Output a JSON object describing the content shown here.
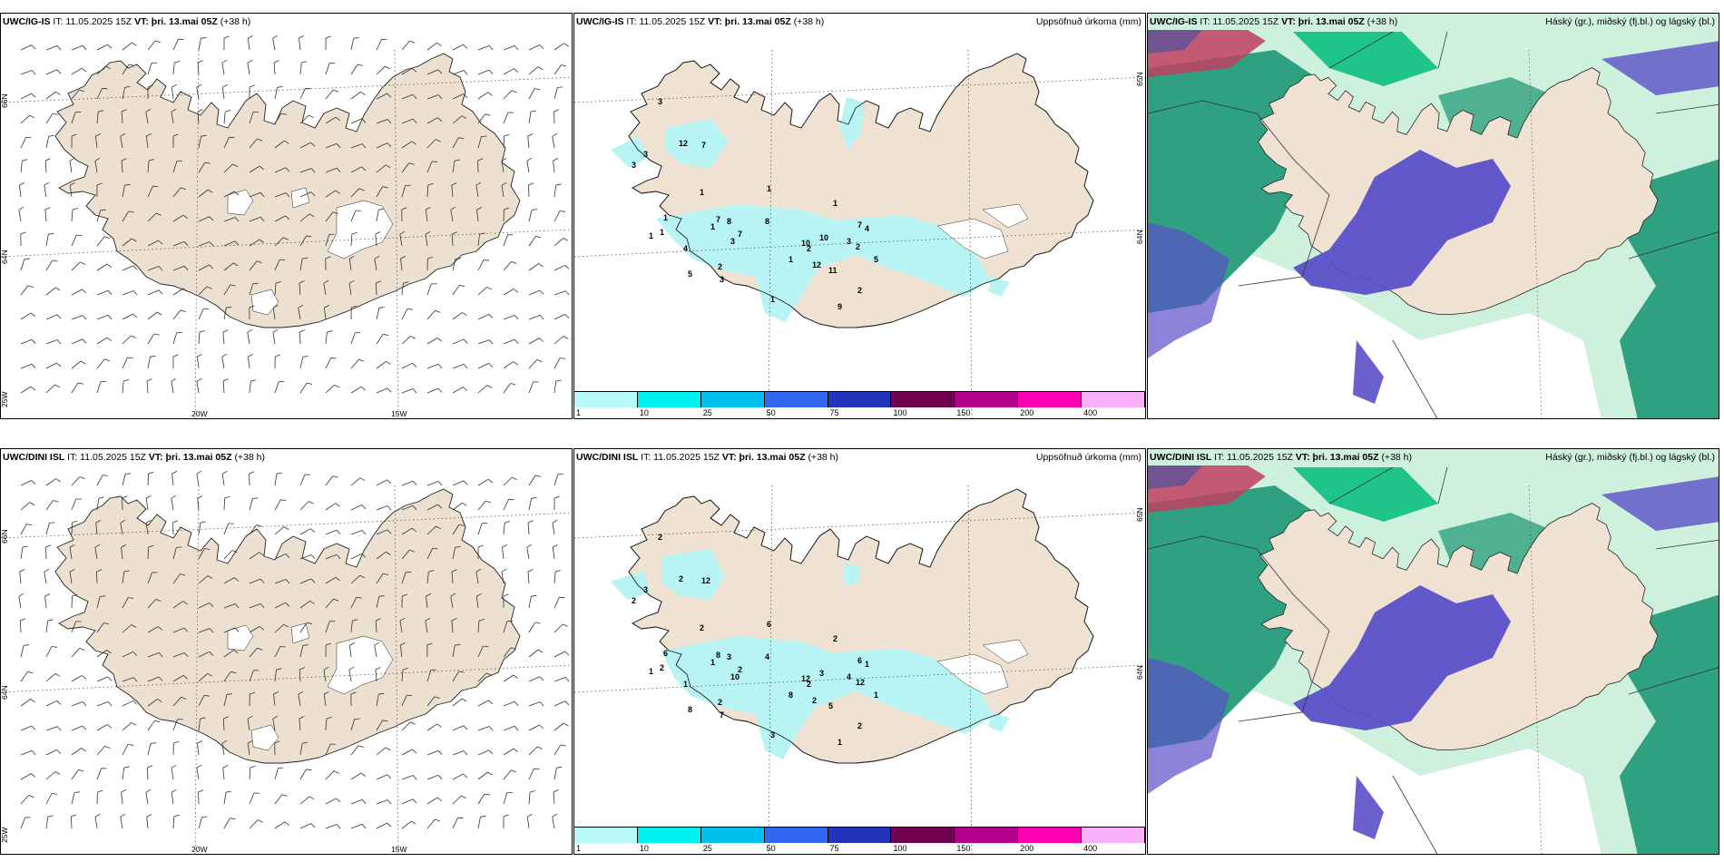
{
  "rows": [
    {
      "model": "UWC/IG-IS",
      "init_label": "IT: 11.05.2025 15Z",
      "valid_label": "VT: þri. 13.mai 05Z",
      "lead": "(+38 h)",
      "lon_labels": [
        "20W",
        "15W"
      ],
      "lat_labels": [
        "66N",
        "64N",
        "25W"
      ],
      "lat_labels_mid": [
        "65N",
        "64N"
      ],
      "precip_numbers": [
        "3",
        "12",
        "7",
        "3",
        "3",
        "1",
        "1",
        "1",
        "4",
        "2",
        "3",
        "5",
        "1",
        "8",
        "7",
        "7",
        "3",
        "1",
        "8",
        "10",
        "10",
        "1",
        "7",
        "2",
        "12",
        "11",
        "3",
        "2",
        "5",
        "4",
        "1",
        "1",
        "9",
        "2",
        "1"
      ]
    },
    {
      "model": "UWC/DINI ISL",
      "init_label": "IT: 11.05.2025 15Z",
      "valid_label": "VT: þri. 13.mai 05Z",
      "lead": "(+38 h)",
      "lon_labels": [
        "20W",
        "15W"
      ],
      "lat_labels": [
        "66N",
        "64N",
        "25W"
      ],
      "lat_labels_mid": [
        "65N",
        "64N"
      ],
      "precip_numbers": [
        "2",
        "2",
        "12",
        "3",
        "2",
        "2",
        "1",
        "2",
        "1",
        "2",
        "7",
        "8",
        "6",
        "3",
        "2",
        "8",
        "10",
        "6",
        "4",
        "12",
        "3",
        "2",
        "6",
        "2",
        "2",
        "5",
        "4",
        "2",
        "1",
        "1",
        "8",
        "3",
        "1",
        "12",
        "1"
      ]
    }
  ],
  "precip_title": "Uppsöfnuð úrkoma (mm)",
  "cloud_title": "Háský (gr.), miðský (fj.bl.) og lágský (bl.)",
  "legend": {
    "labels": [
      "1",
      "10",
      "25",
      "50",
      "75",
      "100",
      "150",
      "200",
      "400"
    ],
    "colors": [
      "#b8fafa",
      "#00f0f0",
      "#00c0f0",
      "#3366ee",
      "#2233bb",
      "#700050",
      "#b0008a",
      "#ff00b4",
      "#f8b0f8"
    ]
  },
  "colors": {
    "land": "#f0e2d3",
    "land_wind": "#ece0d0",
    "precip_light": "#b8f4f4",
    "cloud_high": "#5a50c8",
    "cloud_mid": "#2fa080",
    "cloud_low_green": "#1ec48a",
    "cloud_light": "#c8f0d8",
    "cloud_red": "#c04060"
  }
}
